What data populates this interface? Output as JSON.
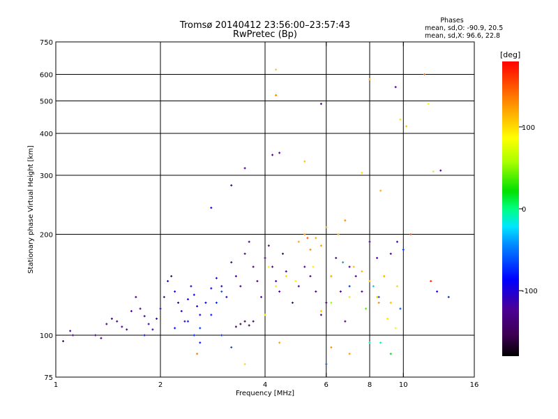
{
  "chart_data": {
    "type": "scatter",
    "title_line1": "Tromsø 20140412 23:56:00–23:57:43",
    "title_line2": "RwPretec (Bp)",
    "stats": {
      "heading": "Phases",
      "line_o": "mean, sd,O: -90.9, 20.5",
      "line_x": "mean, sd,X:  96.6, 22.8"
    },
    "xlabel": "Frequency [MHz]",
    "ylabel": "Stationary phase Virtual Height [km]",
    "x_scale": "log",
    "y_scale": "log",
    "xlim": [
      1,
      16
    ],
    "ylim": [
      75,
      750
    ],
    "x_ticks": [
      {
        "value": 1,
        "label": "1"
      },
      {
        "value": 2,
        "label": "2"
      },
      {
        "value": 4,
        "label": "4"
      },
      {
        "value": 6,
        "label": "6"
      },
      {
        "value": 8,
        "label": "8"
      },
      {
        "value": 10,
        "label": "10"
      },
      {
        "value": 16,
        "label": "16"
      }
    ],
    "y_ticks": [
      {
        "value": 75,
        "label": "75"
      },
      {
        "value": 100,
        "label": "100"
      },
      {
        "value": 200,
        "label": "200"
      },
      {
        "value": 300,
        "label": "300"
      },
      {
        "value": 400,
        "label": "400"
      },
      {
        "value": 500,
        "label": "500"
      },
      {
        "value": 600,
        "label": "600"
      },
      {
        "value": 750,
        "label": "750"
      }
    ],
    "grid_x": [
      2,
      4,
      6,
      8,
      10
    ],
    "grid_y": [
      100,
      200,
      300,
      400,
      500,
      600
    ],
    "colorbar": {
      "label": "[deg]",
      "range": [
        -180,
        180
      ],
      "ticks": [
        {
          "value": 100,
          "label": "100"
        },
        {
          "value": 0,
          "label": "0"
        },
        {
          "value": -100,
          "label": "-100"
        }
      ]
    },
    "series": [
      {
        "points": [
          [
            1.05,
            96,
            -140
          ],
          [
            1.1,
            103,
            -130
          ],
          [
            1.12,
            100,
            -125
          ],
          [
            1.3,
            100,
            -130
          ],
          [
            1.35,
            98,
            -135
          ],
          [
            1.4,
            108,
            -135
          ],
          [
            1.45,
            112,
            -130
          ],
          [
            1.5,
            110,
            -140
          ],
          [
            1.55,
            106,
            -125
          ],
          [
            1.6,
            104,
            -130
          ],
          [
            1.65,
            118,
            -120
          ],
          [
            1.7,
            130,
            -130
          ],
          [
            1.75,
            120,
            -125
          ],
          [
            1.8,
            114,
            -130
          ],
          [
            1.85,
            108,
            -110
          ],
          [
            1.9,
            104,
            -120
          ],
          [
            1.95,
            112,
            -100
          ],
          [
            2.0,
            120,
            -110
          ],
          [
            2.05,
            130,
            -115
          ],
          [
            2.1,
            145,
            -105
          ],
          [
            2.15,
            150,
            -110
          ],
          [
            2.2,
            135,
            -100
          ],
          [
            2.25,
            125,
            -95
          ],
          [
            2.3,
            118,
            -105
          ],
          [
            2.35,
            110,
            -110
          ],
          [
            2.4,
            128,
            -95
          ],
          [
            2.45,
            140,
            -100
          ],
          [
            2.5,
            132,
            -90
          ],
          [
            2.55,
            122,
            -95
          ],
          [
            2.6,
            115,
            -100
          ],
          [
            2.7,
            125,
            -90
          ],
          [
            2.8,
            138,
            -95
          ],
          [
            2.9,
            148,
            -100
          ],
          [
            3.0,
            140,
            -105
          ],
          [
            3.1,
            130,
            -110
          ],
          [
            3.2,
            165,
            -115
          ],
          [
            3.3,
            150,
            -125
          ],
          [
            3.4,
            140,
            -130
          ],
          [
            3.5,
            175,
            -120
          ],
          [
            3.6,
            190,
            -130
          ],
          [
            3.7,
            160,
            -140
          ],
          [
            3.8,
            145,
            -135
          ],
          [
            3.9,
            130,
            -125
          ],
          [
            4.0,
            170,
            -120
          ],
          [
            4.1,
            185,
            -125
          ],
          [
            4.2,
            160,
            -130
          ],
          [
            4.3,
            145,
            -125
          ],
          [
            4.4,
            135,
            -120
          ],
          [
            4.5,
            175,
            -115
          ],
          [
            4.6,
            155,
            -120
          ],
          [
            4.8,
            125,
            -130
          ],
          [
            5.0,
            140,
            -125
          ],
          [
            5.2,
            160,
            -120
          ],
          [
            5.4,
            150,
            -125
          ],
          [
            5.6,
            135,
            -130
          ],
          [
            5.8,
            115,
            -130
          ],
          [
            6.0,
            125,
            -125
          ],
          [
            6.2,
            150,
            -120
          ],
          [
            6.4,
            170,
            -120
          ],
          [
            6.6,
            135,
            -125
          ],
          [
            6.8,
            110,
            -130
          ],
          [
            7.0,
            160,
            -120
          ],
          [
            7.3,
            150,
            -125
          ],
          [
            7.6,
            135,
            -130
          ],
          [
            8.0,
            190,
            -125
          ],
          [
            8.4,
            170,
            -120
          ],
          [
            8.8,
            150,
            -125
          ],
          [
            9.2,
            175,
            -120
          ],
          [
            9.6,
            190,
            -115
          ],
          [
            3.5,
            110,
            -150
          ],
          [
            3.4,
            108,
            -155
          ],
          [
            3.3,
            106,
            -150
          ],
          [
            3.6,
            107,
            -155
          ],
          [
            3.7,
            110,
            -150
          ],
          [
            3.5,
            315,
            -125
          ],
          [
            4.2,
            345,
            -130
          ],
          [
            4.4,
            350,
            -125
          ],
          [
            5.8,
            490,
            -130
          ],
          [
            9.5,
            550,
            -125
          ],
          [
            12.8,
            310,
            -120
          ],
          [
            2.8,
            240,
            -100
          ],
          [
            3.2,
            280,
            -110
          ],
          [
            12.5,
            135,
            -95
          ]
        ]
      },
      {
        "points": [
          [
            5.0,
            190,
            120
          ],
          [
            5.2,
            200,
            125
          ],
          [
            5.4,
            180,
            130
          ],
          [
            5.6,
            195,
            120
          ],
          [
            5.8,
            185,
            125
          ],
          [
            6.0,
            210,
            115
          ],
          [
            6.5,
            200,
            120
          ],
          [
            6.8,
            220,
            130
          ],
          [
            7.2,
            160,
            110
          ],
          [
            7.6,
            155,
            115
          ],
          [
            8.0,
            145,
            110
          ],
          [
            8.4,
            130,
            100
          ],
          [
            8.8,
            150,
            105
          ],
          [
            9.2,
            125,
            110
          ],
          [
            9.6,
            140,
            100
          ],
          [
            7.0,
            130,
            95
          ],
          [
            6.2,
            150,
            105
          ],
          [
            5.5,
            160,
            95
          ],
          [
            4.9,
            145,
            90
          ],
          [
            4.6,
            150,
            100
          ],
          [
            4.3,
            140,
            95
          ],
          [
            4.1,
            160,
            90
          ],
          [
            4.3,
            520,
            135
          ],
          [
            4.3,
            620,
            105
          ],
          [
            8.0,
            580,
            120
          ],
          [
            9.8,
            440,
            100
          ],
          [
            10.2,
            420,
            110
          ],
          [
            5.2,
            330,
            110
          ],
          [
            7.6,
            305,
            100
          ],
          [
            8.6,
            270,
            115
          ],
          [
            10.5,
            200,
            150
          ],
          [
            11.5,
            600,
            140
          ],
          [
            11.8,
            490,
            90
          ],
          [
            12.2,
            308,
            70
          ],
          [
            12.0,
            145,
            165
          ],
          [
            8.5,
            125,
            130
          ],
          [
            9.0,
            112,
            95
          ],
          [
            5.8,
            118,
            110
          ],
          [
            4.4,
            95,
            120
          ],
          [
            6.2,
            92,
            130
          ],
          [
            7.0,
            88,
            125
          ],
          [
            2.55,
            88,
            135
          ],
          [
            3.5,
            82,
            100
          ],
          [
            4.0,
            115,
            100
          ],
          [
            9.5,
            105,
            80
          ],
          [
            5.3,
            195,
            150
          ]
        ]
      },
      {
        "points": [
          [
            2.2,
            105,
            -80
          ],
          [
            2.4,
            110,
            -75
          ],
          [
            2.6,
            105,
            -70
          ],
          [
            2.8,
            115,
            -80
          ],
          [
            2.9,
            125,
            -75
          ],
          [
            3.0,
            100,
            -70
          ],
          [
            3.2,
            92,
            -65
          ],
          [
            2.6,
            95,
            -80
          ],
          [
            2.5,
            100,
            -75
          ],
          [
            3.0,
            135,
            -60
          ],
          [
            6.0,
            82,
            -55
          ],
          [
            7.0,
            140,
            -70
          ],
          [
            8.5,
            130,
            -65
          ],
          [
            9.8,
            120,
            -60
          ],
          [
            13.5,
            130,
            -75
          ],
          [
            1.8,
            100,
            -80
          ],
          [
            10.0,
            180,
            -70
          ],
          [
            6.7,
            165,
            -40
          ],
          [
            8.0,
            95,
            -10
          ],
          [
            9.2,
            88,
            20
          ],
          [
            7.8,
            120,
            40
          ],
          [
            6.2,
            125,
            55
          ],
          [
            8.6,
            95,
            -5
          ],
          [
            8.2,
            140,
            -30
          ]
        ]
      }
    ]
  }
}
